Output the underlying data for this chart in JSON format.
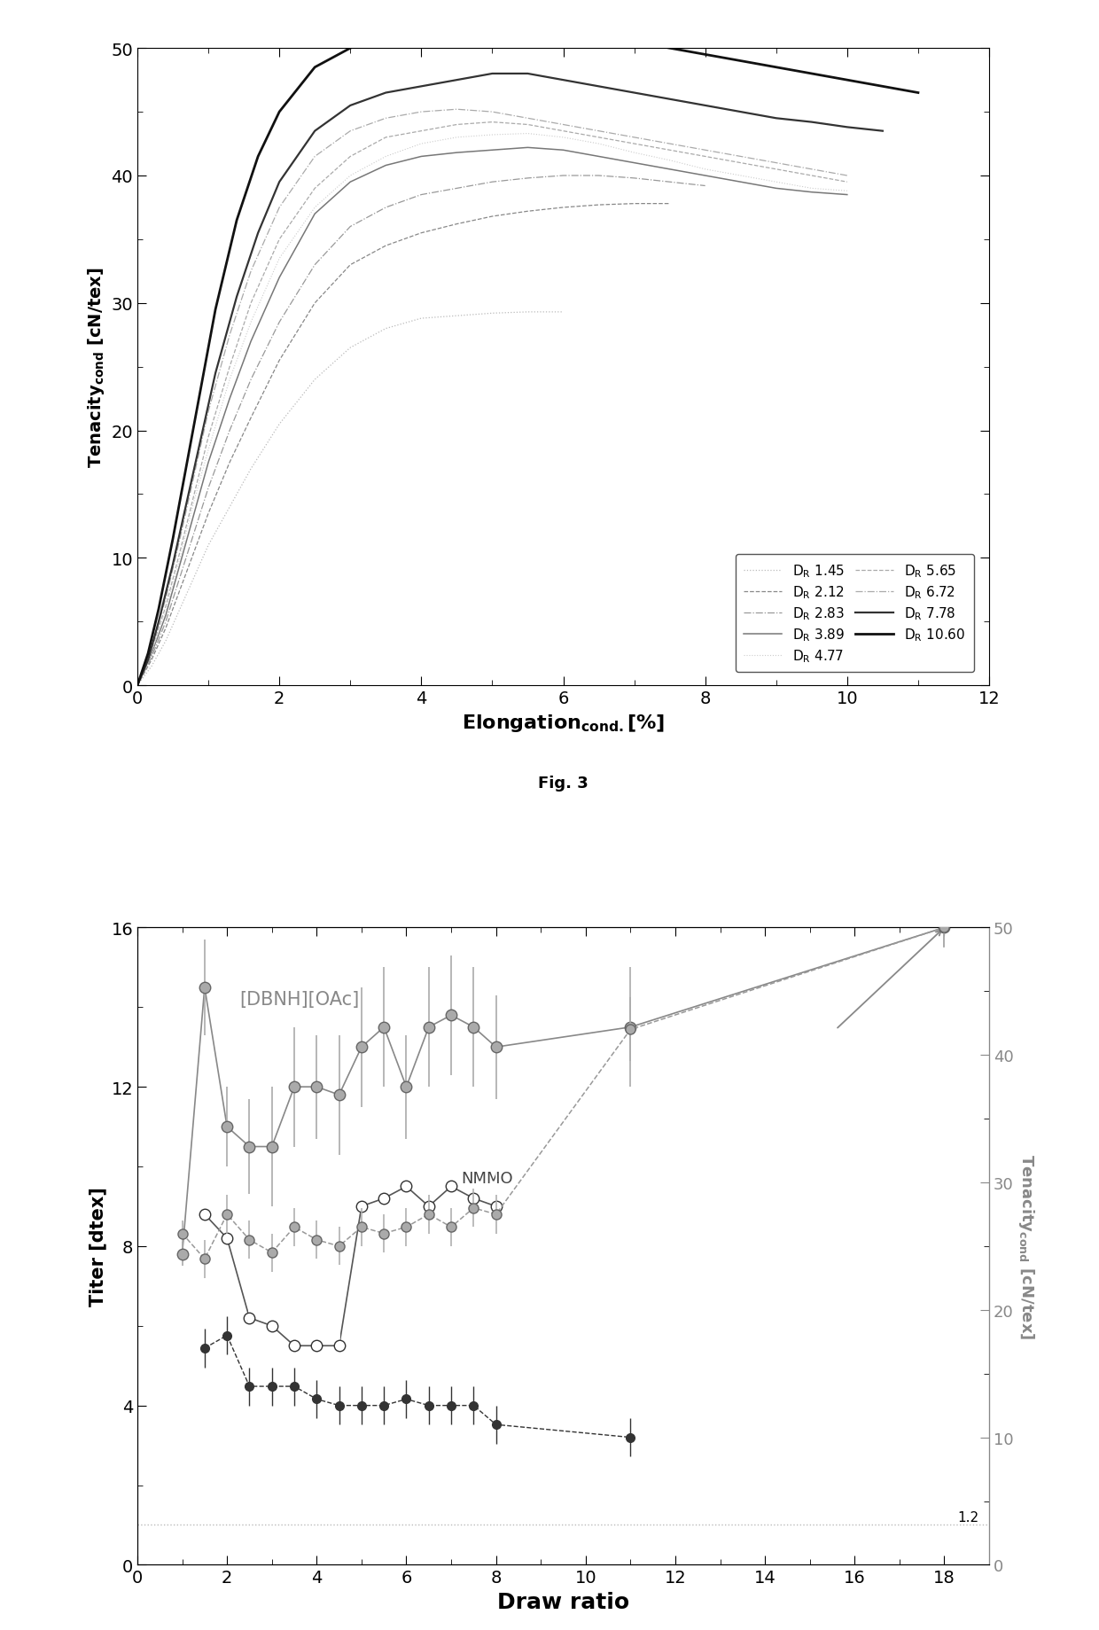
{
  "fig3": {
    "xlim": [
      0,
      12
    ],
    "ylim": [
      0,
      50
    ],
    "xticks": [
      0,
      2,
      4,
      6,
      8,
      10,
      12
    ],
    "yticks": [
      0,
      10,
      20,
      30,
      40,
      50
    ],
    "curves": [
      {
        "label": "D$_R$ 1.45",
        "color": "#bbbbbb",
        "lw": 0.9,
        "ls": "dotted",
        "x": [
          0,
          0.2,
          0.4,
          0.6,
          0.8,
          1.0,
          1.3,
          1.6,
          2.0,
          2.5,
          3.0,
          3.5,
          4.0,
          4.5,
          5.0,
          5.5,
          6.0
        ],
        "y": [
          0,
          1.5,
          3.5,
          6.0,
          8.5,
          11.0,
          14.0,
          17.0,
          20.5,
          24.0,
          26.5,
          28.0,
          28.8,
          29.0,
          29.2,
          29.3,
          29.3
        ]
      },
      {
        "label": "D$_R$ 2.12",
        "color": "#888888",
        "lw": 0.9,
        "ls": "dashed",
        "x": [
          0,
          0.2,
          0.4,
          0.6,
          0.8,
          1.0,
          1.3,
          1.6,
          2.0,
          2.5,
          3.0,
          3.5,
          4.0,
          4.5,
          5.0,
          5.5,
          6.0,
          6.5,
          7.0,
          7.5
        ],
        "y": [
          0,
          2.0,
          4.5,
          7.5,
          10.5,
          13.5,
          17.5,
          21.0,
          25.5,
          30.0,
          33.0,
          34.5,
          35.5,
          36.2,
          36.8,
          37.2,
          37.5,
          37.7,
          37.8,
          37.8
        ]
      },
      {
        "label": "D$_R$ 2.83",
        "color": "#999999",
        "lw": 0.9,
        "ls": "dashdot",
        "x": [
          0,
          0.2,
          0.4,
          0.6,
          0.8,
          1.0,
          1.3,
          1.6,
          2.0,
          2.5,
          3.0,
          3.5,
          4.0,
          4.5,
          5.0,
          5.5,
          6.0,
          6.5,
          7.0,
          7.5,
          8.0
        ],
        "y": [
          0,
          2.2,
          5.0,
          8.5,
          12.0,
          15.5,
          20.0,
          24.0,
          28.5,
          33.0,
          36.0,
          37.5,
          38.5,
          39.0,
          39.5,
          39.8,
          40.0,
          40.0,
          39.8,
          39.5,
          39.2
        ]
      },
      {
        "label": "D$_R$ 3.89",
        "color": "#777777",
        "lw": 1.1,
        "ls": "solid",
        "x": [
          0,
          0.2,
          0.4,
          0.6,
          0.8,
          1.0,
          1.3,
          1.6,
          2.0,
          2.5,
          3.0,
          3.5,
          4.0,
          4.5,
          5.0,
          5.5,
          6.0,
          6.5,
          7.0,
          7.5,
          8.0,
          8.5,
          9.0,
          9.5,
          10.0
        ],
        "y": [
          0,
          2.5,
          5.5,
          9.5,
          13.5,
          17.5,
          22.5,
          27.0,
          32.0,
          37.0,
          39.5,
          40.8,
          41.5,
          41.8,
          42.0,
          42.2,
          42.0,
          41.5,
          41.0,
          40.5,
          40.0,
          39.5,
          39.0,
          38.7,
          38.5
        ]
      },
      {
        "label": "D$_R$ 4.77",
        "color": "#cccccc",
        "lw": 0.8,
        "ls": "dotted",
        "x": [
          0,
          0.2,
          0.4,
          0.6,
          0.8,
          1.0,
          1.3,
          1.6,
          2.0,
          2.5,
          3.0,
          3.5,
          4.0,
          4.5,
          5.0,
          5.5,
          6.0,
          6.5,
          7.0,
          7.5,
          8.0,
          8.5,
          9.0,
          9.5,
          10.0
        ],
        "y": [
          0,
          2.5,
          5.8,
          10.0,
          14.5,
          18.5,
          24.0,
          28.5,
          33.5,
          37.5,
          40.0,
          41.5,
          42.5,
          43.0,
          43.2,
          43.3,
          43.0,
          42.5,
          41.8,
          41.2,
          40.5,
          40.0,
          39.5,
          39.0,
          38.8
        ]
      },
      {
        "label": "D$_R$ 5.65",
        "color": "#aaaaaa",
        "lw": 0.9,
        "ls": "dashed",
        "x": [
          0,
          0.2,
          0.4,
          0.6,
          0.8,
          1.0,
          1.3,
          1.6,
          2.0,
          2.5,
          3.0,
          3.5,
          4.0,
          4.5,
          5.0,
          5.5,
          6.0,
          6.5,
          7.0,
          7.5,
          8.0,
          8.5,
          9.0,
          9.5,
          10.0
        ],
        "y": [
          0,
          2.8,
          6.2,
          10.5,
          15.0,
          19.5,
          25.0,
          30.0,
          35.0,
          39.0,
          41.5,
          43.0,
          43.5,
          44.0,
          44.2,
          44.0,
          43.5,
          43.0,
          42.5,
          42.0,
          41.5,
          41.0,
          40.5,
          40.0,
          39.5
        ]
      },
      {
        "label": "D$_R$ 6.72",
        "color": "#aaaaaa",
        "lw": 0.9,
        "ls": "dashdot",
        "x": [
          0,
          0.2,
          0.4,
          0.6,
          0.8,
          1.0,
          1.3,
          1.6,
          2.0,
          2.5,
          3.0,
          3.5,
          4.0,
          4.5,
          5.0,
          5.5,
          6.0,
          6.5,
          7.0,
          7.5,
          8.0,
          8.5,
          9.0,
          9.5,
          10.0
        ],
        "y": [
          0,
          3.0,
          6.8,
          11.5,
          16.5,
          21.5,
          27.5,
          32.5,
          37.5,
          41.5,
          43.5,
          44.5,
          45.0,
          45.2,
          45.0,
          44.5,
          44.0,
          43.5,
          43.0,
          42.5,
          42.0,
          41.5,
          41.0,
          40.5,
          40.0
        ]
      },
      {
        "label": "D$_R$ 7.78",
        "color": "#333333",
        "lw": 1.6,
        "ls": "solid",
        "x": [
          0,
          0.15,
          0.3,
          0.5,
          0.7,
          0.9,
          1.1,
          1.4,
          1.7,
          2.0,
          2.5,
          3.0,
          3.5,
          4.0,
          4.5,
          5.0,
          5.5,
          6.0,
          6.5,
          7.0,
          7.5,
          8.0,
          8.5,
          9.0,
          9.5,
          10.0,
          10.5
        ],
        "y": [
          0,
          2.0,
          5.0,
          9.5,
          14.5,
          19.5,
          24.5,
          30.5,
          35.5,
          39.5,
          43.5,
          45.5,
          46.5,
          47.0,
          47.5,
          48.0,
          48.0,
          47.5,
          47.0,
          46.5,
          46.0,
          45.5,
          45.0,
          44.5,
          44.2,
          43.8,
          43.5
        ]
      },
      {
        "label": "D$_R$ 10.60",
        "color": "#111111",
        "lw": 2.0,
        "ls": "solid",
        "x": [
          0,
          0.15,
          0.3,
          0.5,
          0.7,
          0.9,
          1.1,
          1.4,
          1.7,
          2.0,
          2.5,
          3.0,
          3.5,
          4.0,
          4.5,
          5.0,
          5.5,
          6.0,
          6.5,
          7.0,
          7.5,
          8.0,
          8.5,
          9.0,
          9.5,
          10.0,
          10.5,
          11.0
        ],
        "y": [
          0,
          2.5,
          6.0,
          11.5,
          17.5,
          23.5,
          29.5,
          36.5,
          41.5,
          45.0,
          48.5,
          50.0,
          51.0,
          51.5,
          52.0,
          52.0,
          52.0,
          51.5,
          51.0,
          50.5,
          50.0,
          49.5,
          49.0,
          48.5,
          48.0,
          47.5,
          47.0,
          46.5
        ]
      }
    ]
  },
  "fig4": {
    "ylabel_left": "Titer [dtex]",
    "ylabel_right": "Tenacity$_{cond}$ [cN/tex]",
    "xlabel": "Draw ratio",
    "xlim": [
      0,
      19
    ],
    "ylim_left": [
      0,
      16
    ],
    "ylim_right": [
      0,
      50
    ],
    "xticks": [
      0,
      2,
      4,
      6,
      8,
      10,
      12,
      14,
      16,
      18
    ],
    "yticks_left": [
      0,
      4,
      8,
      12,
      16
    ],
    "yticks_right": [
      0,
      10,
      20,
      30,
      40,
      50
    ],
    "hline_y_left": 1.0,
    "annotation_1_2": "1.2",
    "label_dbnh": "[DBNH][OAc]",
    "label_nmmo": "NMMO",
    "dbnh_titer_x": [
      1.0,
      1.5,
      2.0,
      2.5,
      3.0,
      3.5,
      4.0,
      4.5,
      5.0,
      5.5,
      6.0,
      6.5,
      7.0,
      7.5,
      8.0,
      11.0,
      18.0
    ],
    "dbnh_titer_y": [
      7.8,
      14.5,
      11.0,
      10.5,
      10.5,
      12.0,
      12.0,
      11.8,
      13.0,
      13.5,
      12.0,
      13.5,
      13.8,
      13.5,
      13.0,
      13.5,
      16.0
    ],
    "dbnh_titer_yerr": [
      0.3,
      1.2,
      1.0,
      1.2,
      1.5,
      1.5,
      1.3,
      1.5,
      1.5,
      1.5,
      1.3,
      1.5,
      1.5,
      1.5,
      1.3,
      1.5,
      0.5
    ],
    "nmmo_titer_x": [
      1.5,
      2.0,
      2.5,
      3.0,
      3.5,
      4.0,
      4.5,
      5.0,
      5.5,
      6.0,
      6.5,
      7.0,
      7.5,
      8.0
    ],
    "nmmo_titer_y": [
      8.8,
      8.2,
      6.2,
      6.0,
      5.5,
      5.5,
      5.5,
      9.0,
      9.2,
      9.5,
      9.0,
      9.5,
      9.2,
      9.0
    ],
    "nmmo_titer_yerr": [
      0.8,
      1.0,
      0.8,
      1.0,
      1.2,
      1.3,
      1.2,
      1.2,
      1.2,
      1.2,
      1.2,
      1.2,
      1.2,
      1.2
    ],
    "dbnh_ten_x": [
      1.0,
      1.5,
      2.0,
      2.5,
      3.0,
      3.5,
      4.0,
      4.5,
      5.0,
      5.5,
      6.0,
      6.5,
      7.0,
      7.5,
      8.0,
      11.0,
      18.0
    ],
    "dbnh_ten_y": [
      26.0,
      24.0,
      27.5,
      25.5,
      24.5,
      26.5,
      25.5,
      25.0,
      26.5,
      26.0,
      26.5,
      27.5,
      26.5,
      28.0,
      27.5,
      42.0,
      50.0
    ],
    "dbnh_ten_yerr": [
      1.0,
      1.5,
      1.5,
      1.5,
      1.5,
      1.5,
      1.5,
      1.5,
      1.5,
      1.5,
      1.5,
      1.5,
      1.5,
      1.5,
      1.5,
      2.5,
      1.5
    ],
    "nmmo_ten_x": [
      1.5,
      2.0,
      2.5,
      3.0,
      3.5,
      4.0,
      4.5,
      5.0,
      5.5,
      6.0,
      6.5,
      7.0,
      7.5,
      8.0,
      11.0
    ],
    "nmmo_ten_y": [
      17.0,
      18.0,
      14.0,
      14.0,
      14.0,
      13.0,
      12.5,
      12.5,
      12.5,
      13.0,
      12.5,
      12.5,
      12.5,
      11.0,
      10.0
    ],
    "nmmo_ten_yerr": [
      1.5,
      1.5,
      1.5,
      1.5,
      1.5,
      1.5,
      1.5,
      1.5,
      1.5,
      1.5,
      1.5,
      1.5,
      1.5,
      1.5,
      1.5
    ]
  }
}
